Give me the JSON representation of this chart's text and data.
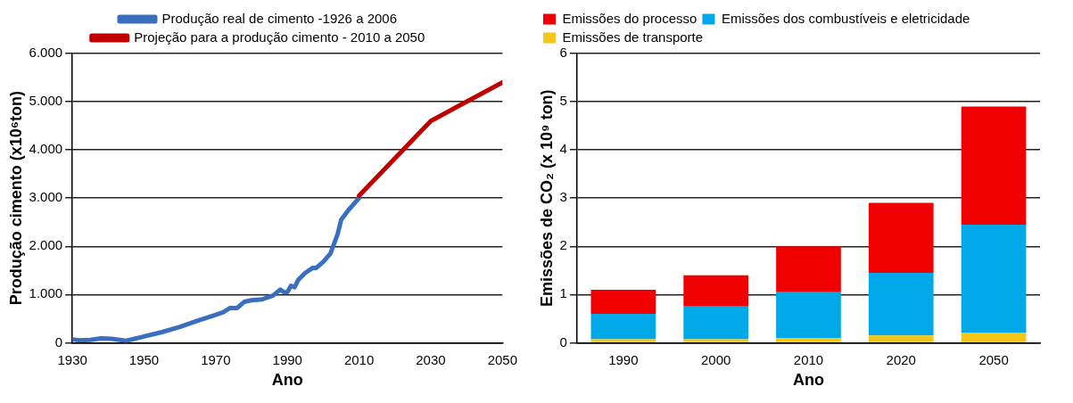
{
  "chart_data": [
    {
      "type": "line",
      "xlabel": "Ano",
      "ylabel": "Produção cimento (x10⁶ton)",
      "xlim": [
        1930,
        2050
      ],
      "xticks": [
        1930,
        1950,
        1970,
        1990,
        2010,
        2030,
        2050
      ],
      "ylim": [
        0,
        6000
      ],
      "yticks": [
        {
          "value": 0,
          "label": "0"
        },
        {
          "value": 1000,
          "label": "1.000"
        },
        {
          "value": 2000,
          "label": "2.000"
        },
        {
          "value": 3000,
          "label": "3.000"
        },
        {
          "value": 4000,
          "label": "4.000"
        },
        {
          "value": 5000,
          "label": "5.000"
        },
        {
          "value": 6000,
          "label": "6.000"
        }
      ],
      "grid": "y",
      "legend": "top",
      "marker": "none",
      "line_style": "solid",
      "series": [
        {
          "name": "Projeção para a produção cimento - 2010 a 2050",
          "color": "#c00000",
          "x": [
            2010,
            2030,
            2050
          ],
          "values": [
            3050,
            4600,
            5400
          ]
        },
        {
          "name": "Produção real de cimento -1926 a 2006",
          "color": "#3a6fc0",
          "x": [
            1930,
            1932,
            1935,
            1938,
            1941,
            1945,
            1950,
            1955,
            1960,
            1965,
            1970,
            1972,
            1974,
            1976,
            1978,
            1980,
            1983,
            1986,
            1988,
            1989,
            1990,
            1991,
            1992,
            1993,
            1995,
            1997,
            1998,
            2000,
            2002,
            2004,
            2005,
            2007,
            2010
          ],
          "values": [
            70,
            50,
            60,
            90,
            80,
            40,
            130,
            220,
            330,
            460,
            580,
            630,
            720,
            720,
            850,
            880,
            900,
            980,
            1100,
            1050,
            1050,
            1180,
            1150,
            1300,
            1450,
            1550,
            1550,
            1680,
            1850,
            2250,
            2550,
            2750,
            3000
          ]
        }
      ]
    },
    {
      "type": "bar",
      "stacked": true,
      "xlabel": "Ano",
      "ylabel": "Emissões de CO₂ (x 10⁹ ton)",
      "categories": [
        "1990",
        "2000",
        "2010",
        "2020",
        "2050"
      ],
      "ylim": [
        0,
        6
      ],
      "yticks": [
        0,
        1,
        2,
        3,
        4,
        5,
        6
      ],
      "grid": "y",
      "legend": "top left",
      "series": [
        {
          "name": "Emissões de transporte",
          "color": "#f5c518",
          "values": [
            0.07,
            0.07,
            0.1,
            0.15,
            0.2
          ]
        },
        {
          "name": "Emissões dos combustíveis e eletricidade",
          "color": "#00a8e8",
          "values": [
            0.53,
            0.68,
            0.95,
            1.3,
            2.25
          ]
        },
        {
          "name": "Emissões do processo",
          "color": "#f00000",
          "values": [
            0.5,
            0.65,
            0.95,
            1.45,
            2.45
          ]
        }
      ]
    }
  ]
}
